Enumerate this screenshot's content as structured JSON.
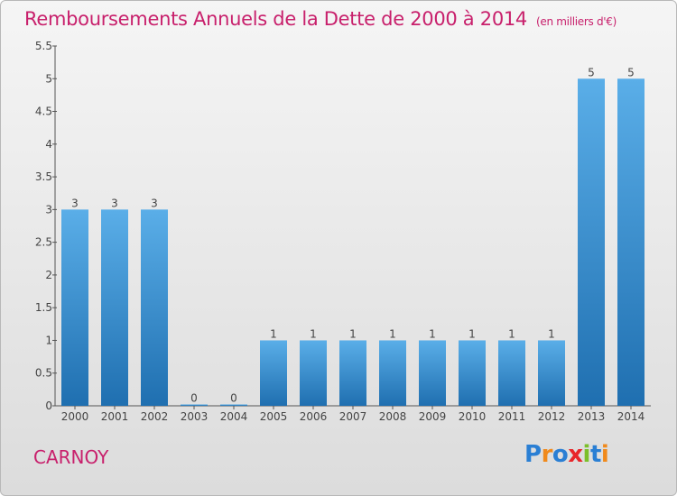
{
  "title": "Remboursements Annuels de la Dette de 2000 à 2014",
  "unit": "(en milliers d'€)",
  "city": "CARNOY",
  "logo": {
    "letters": [
      "P",
      "r",
      "o",
      "x",
      "i",
      "t",
      "i"
    ],
    "colors": [
      "#2a7fd4",
      "#f08a1c",
      "#2a7fd4",
      "#e8262a",
      "#7cbf2a",
      "#2a7fd4",
      "#f08a1c"
    ]
  },
  "colors": {
    "bar_top": "#5aaee8",
    "bar_bottom": "#1f6fb0",
    "title": "#c8206c"
  },
  "chart_data": {
    "type": "bar",
    "categories": [
      "2000",
      "2001",
      "2002",
      "2003",
      "2004",
      "2005",
      "2006",
      "2007",
      "2008",
      "2009",
      "2010",
      "2011",
      "2012",
      "2013",
      "2014"
    ],
    "values": [
      3,
      3,
      3,
      0,
      0,
      1,
      1,
      1,
      1,
      1,
      1,
      1,
      1,
      5,
      5
    ],
    "labels": [
      "3",
      "3",
      "3",
      "0",
      "0",
      "1",
      "1",
      "1",
      "1",
      "1",
      "1",
      "1",
      "1",
      "5",
      "5"
    ],
    "ylim": [
      0,
      5.5
    ],
    "yticks": [
      0,
      0.5,
      1,
      1.5,
      2,
      2.5,
      3,
      3.5,
      4,
      4.5,
      5,
      5.5
    ],
    "ytick_labels": [
      "0",
      "0.5",
      "1",
      "1.5",
      "2",
      "2.5",
      "3",
      "3.5",
      "4",
      "4.5",
      "5",
      "5.5"
    ],
    "grid": false
  }
}
